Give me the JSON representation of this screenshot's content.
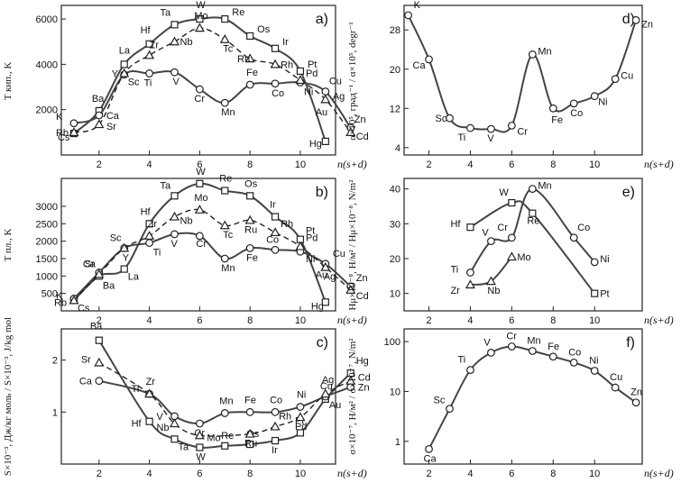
{
  "chart_data": [
    {
      "id": "a",
      "type": "line",
      "panel_label": "a)",
      "ylabel": "T кип., K",
      "xlabel": "n(s+d)",
      "xlim": [
        0.5,
        11.4
      ],
      "ylim": [
        0,
        6600
      ],
      "xticks": [
        2,
        4,
        6,
        8,
        10
      ],
      "yticks": [
        2000,
        4000,
        6000
      ],
      "series": [
        {
          "style": "solid",
          "marker": "square",
          "points": [
            {
              "x": 1,
              "y": 950,
              "label": "Cs"
            },
            {
              "x": 2,
              "y": 1950,
              "label": "Ba"
            },
            {
              "x": 3,
              "y": 4000,
              "label": "La"
            },
            {
              "x": 4,
              "y": 4900,
              "label": "Hf"
            },
            {
              "x": 5,
              "y": 5750,
              "label": "Ta"
            },
            {
              "x": 6,
              "y": 6000,
              "label": "W"
            },
            {
              "x": 7,
              "y": 6000,
              "label": "Re"
            },
            {
              "x": 8,
              "y": 5250,
              "label": "Os"
            },
            {
              "x": 9,
              "y": 4700,
              "label": "Ir"
            },
            {
              "x": 10,
              "y": 3700,
              "label": "Pt"
            },
            {
              "x": 11,
              "y": 600,
              "label": "Hg"
            }
          ]
        },
        {
          "style": "solid",
          "marker": "circle",
          "points": [
            {
              "x": 1,
              "y": 1400,
              "label": "K"
            },
            {
              "x": 2,
              "y": 1750,
              "label": "Ca"
            },
            {
              "x": 3,
              "y": 3550,
              "label": "Sc"
            },
            {
              "x": 4,
              "y": 3600,
              "label": "Ti"
            },
            {
              "x": 5,
              "y": 3650,
              "label": "V"
            },
            {
              "x": 6,
              "y": 2900,
              "label": "Cr"
            },
            {
              "x": 7,
              "y": 2300,
              "label": "Mn"
            },
            {
              "x": 8,
              "y": 3100,
              "label": "Fe"
            },
            {
              "x": 9,
              "y": 3150,
              "label": "Co"
            },
            {
              "x": 10,
              "y": 3200,
              "label": "Ni"
            },
            {
              "x": 11,
              "y": 2800,
              "label": "Cu"
            },
            {
              "x": 12,
              "y": 1200,
              "label": "Zn"
            }
          ]
        },
        {
          "style": "dashed",
          "marker": "triangle",
          "points": [
            {
              "x": 1,
              "y": 1000,
              "label": "Rb"
            },
            {
              "x": 2,
              "y": 1350,
              "label": "Sr"
            },
            {
              "x": 3,
              "y": 3600,
              "label": "Y"
            },
            {
              "x": 4,
              "y": 4400,
              "label": "Zr"
            },
            {
              "x": 5,
              "y": 5000,
              "label": "Nb"
            },
            {
              "x": 6,
              "y": 5600,
              "label": "Mo"
            },
            {
              "x": 7,
              "y": 5100,
              "label": "Tc"
            },
            {
              "x": 8,
              "y": 4250,
              "label": "Ru"
            },
            {
              "x": 9,
              "y": 4000,
              "label": "Rh"
            },
            {
              "x": 10,
              "y": 3300,
              "label": "Pd"
            },
            {
              "x": 11,
              "y": 2450,
              "label": "Ag"
            },
            {
              "x": 12,
              "y": 1000,
              "label": "Cd"
            }
          ]
        }
      ],
      "extra_labels": [
        {
          "x": 10.6,
          "y": 1900,
          "label": "Au"
        }
      ]
    },
    {
      "id": "b",
      "type": "line",
      "panel_label": "b)",
      "ylabel": "T пл., K",
      "xlabel": "n(s+d)",
      "xlim": [
        0.5,
        11.4
      ],
      "ylim": [
        0,
        3800
      ],
      "xticks": [
        2,
        4,
        6,
        8,
        10
      ],
      "yticks": [
        500,
        1000,
        1500,
        2000,
        2500,
        3000
      ],
      "series": [
        {
          "style": "solid",
          "marker": "square",
          "points": [
            {
              "x": 1,
              "y": 300,
              "label": "Cs"
            },
            {
              "x": 2,
              "y": 1000,
              "label": "Ba"
            },
            {
              "x": 3,
              "y": 1200,
              "label": "La"
            },
            {
              "x": 4,
              "y": 2500,
              "label": "Hf"
            },
            {
              "x": 5,
              "y": 3300,
              "label": "Ta"
            },
            {
              "x": 6,
              "y": 3650,
              "label": "W"
            },
            {
              "x": 7,
              "y": 3450,
              "label": "Re"
            },
            {
              "x": 8,
              "y": 3300,
              "label": "Os"
            },
            {
              "x": 9,
              "y": 2700,
              "label": "Ir"
            },
            {
              "x": 10,
              "y": 2050,
              "label": "Pt"
            },
            {
              "x": 11,
              "y": 250,
              "label": "Hg"
            }
          ]
        },
        {
          "style": "solid",
          "marker": "circle",
          "points": [
            {
              "x": 1,
              "y": 350,
              "label": "K"
            },
            {
              "x": 2,
              "y": 1100,
              "label": "Ca"
            },
            {
              "x": 3,
              "y": 1800,
              "label": "Sc"
            },
            {
              "x": 4,
              "y": 1950,
              "label": "Ti"
            },
            {
              "x": 5,
              "y": 2200,
              "label": "V"
            },
            {
              "x": 6,
              "y": 2150,
              "label": "Cr"
            },
            {
              "x": 7,
              "y": 1500,
              "label": "Mn"
            },
            {
              "x": 8,
              "y": 1800,
              "label": "Fe"
            },
            {
              "x": 9,
              "y": 1750,
              "label": "Co"
            },
            {
              "x": 10,
              "y": 1700,
              "label": "Ni"
            },
            {
              "x": 11,
              "y": 1350,
              "label": "Cu"
            },
            {
              "x": 12,
              "y": 700,
              "label": "Zn"
            }
          ]
        },
        {
          "style": "dashed",
          "marker": "triangle",
          "points": [
            {
              "x": 1,
              "y": 300,
              "label": "Rb"
            },
            {
              "x": 2,
              "y": 1050,
              "label": "Sr"
            },
            {
              "x": 3,
              "y": 1800,
              "label": "Y"
            },
            {
              "x": 4,
              "y": 2150,
              "label": "Zr"
            },
            {
              "x": 5,
              "y": 2700,
              "label": "Nb"
            },
            {
              "x": 6,
              "y": 2900,
              "label": "Mo"
            },
            {
              "x": 7,
              "y": 2450,
              "label": "Tc"
            },
            {
              "x": 8,
              "y": 2600,
              "label": "Ru"
            },
            {
              "x": 9,
              "y": 2250,
              "label": "Rh"
            },
            {
              "x": 10,
              "y": 1850,
              "label": "Pd"
            },
            {
              "x": 11,
              "y": 1250,
              "label": "Ag"
            },
            {
              "x": 12,
              "y": 600,
              "label": "Cd"
            }
          ]
        }
      ],
      "extra_labels": [
        {
          "x": 10.6,
          "y": 1050,
          "label": "Au"
        }
      ]
    },
    {
      "id": "c",
      "type": "line",
      "panel_label": "c)",
      "ylabel": "S×10⁻³, Дж/кг моль / S×10⁻³, J/kg mol",
      "xlabel": "n(s+d)",
      "xlim": [
        0.5,
        11.4
      ],
      "ylim": [
        0,
        2.6
      ],
      "xticks": [
        2,
        4,
        6,
        8,
        10
      ],
      "yticks": [
        1,
        2
      ],
      "series": [
        {
          "style": "solid",
          "marker": "square",
          "points": [
            {
              "x": 2,
              "y": 2.38,
              "label": "Ba"
            },
            {
              "x": 4,
              "y": 0.82,
              "label": "Hf"
            },
            {
              "x": 5,
              "y": 0.48,
              "label": "Ta"
            },
            {
              "x": 6,
              "y": 0.32,
              "label": "W"
            },
            {
              "x": 7,
              "y": 0.35,
              "label": "Re"
            },
            {
              "x": 8,
              "y": 0.38,
              "label": "Os"
            },
            {
              "x": 9,
              "y": 0.45,
              "label": "Ir"
            },
            {
              "x": 10,
              "y": 0.6,
              "label": "Pt"
            },
            {
              "x": 11,
              "y": 1.25,
              "label": "Au"
            },
            {
              "x": 12,
              "y": 1.75,
              "label": "Hg"
            }
          ]
        },
        {
          "style": "solid",
          "marker": "circle",
          "points": [
            {
              "x": 2,
              "y": 1.6,
              "label": "Ca"
            },
            {
              "x": 4,
              "y": 1.35,
              "label": "Ti"
            },
            {
              "x": 5,
              "y": 0.92,
              "label": "V"
            },
            {
              "x": 6,
              "y": 0.78,
              "label": "Cr"
            },
            {
              "x": 7,
              "y": 0.98,
              "label": "Mn"
            },
            {
              "x": 8,
              "y": 1.0,
              "label": "Fe"
            },
            {
              "x": 9,
              "y": 1.0,
              "label": "Co"
            },
            {
              "x": 10,
              "y": 1.1,
              "label": "Ni"
            },
            {
              "x": 11,
              "y": 1.3,
              "label": "Cu"
            },
            {
              "x": 12,
              "y": 1.48,
              "label": "Zn"
            }
          ]
        },
        {
          "style": "dashed",
          "marker": "triangle",
          "points": [
            {
              "x": 2,
              "y": 1.95,
              "label": "Sr"
            },
            {
              "x": 4,
              "y": 1.35,
              "label": "Zr"
            },
            {
              "x": 5,
              "y": 0.78,
              "label": "Nb"
            },
            {
              "x": 6,
              "y": 0.55,
              "label": "Mo"
            },
            {
              "x": 8,
              "y": 0.58,
              "label": "Ru"
            },
            {
              "x": 9,
              "y": 0.72,
              "label": "Rh"
            },
            {
              "x": 10,
              "y": 0.9,
              "label": "Pd"
            },
            {
              "x": 11,
              "y": 1.35,
              "label": "Ag"
            },
            {
              "x": 12,
              "y": 1.6,
              "label": "Cd"
            }
          ]
        }
      ],
      "extra_labels": []
    },
    {
      "id": "d",
      "type": "line",
      "panel_label": "d)",
      "ylabel": "α×10⁵, град⁻¹ / α×10⁵, degr⁻¹",
      "xlabel": "n(s+d)",
      "xlim": [
        0.8,
        12.3
      ],
      "ylim": [
        2.5,
        33
      ],
      "xticks": [
        2,
        4,
        6,
        8,
        10
      ],
      "yticks": [
        4,
        12,
        20,
        28
      ],
      "series": [
        {
          "style": "solid",
          "marker": "circle",
          "points": [
            {
              "x": 1,
              "y": 31,
              "label": "K"
            },
            {
              "x": 2,
              "y": 22,
              "label": "Ca"
            },
            {
              "x": 3,
              "y": 10,
              "label": "Sc"
            },
            {
              "x": 4,
              "y": 8,
              "label": "Ti"
            },
            {
              "x": 5,
              "y": 7.8,
              "label": "V"
            },
            {
              "x": 6,
              "y": 8.5,
              "label": "Cr"
            },
            {
              "x": 7,
              "y": 23,
              "label": "Mn"
            },
            {
              "x": 8,
              "y": 12,
              "label": "Fe"
            },
            {
              "x": 9,
              "y": 13,
              "label": "Co"
            },
            {
              "x": 10,
              "y": 14.5,
              "label": "Ni"
            },
            {
              "x": 11,
              "y": 18,
              "label": "Cu"
            },
            {
              "x": 12,
              "y": 30,
              "label": "Zn"
            }
          ]
        }
      ],
      "extra_labels": []
    },
    {
      "id": "e",
      "type": "line",
      "panel_label": "e)",
      "ylabel": "Hμ×10⁻⁸, H/м² / Hμ×10⁻⁸, N/m²",
      "xlabel": "n(s+d)",
      "xlim": [
        0.8,
        12.3
      ],
      "ylim": [
        5,
        43
      ],
      "xticks": [
        2,
        4,
        6,
        8,
        10
      ],
      "yticks": [
        10,
        20,
        30,
        40
      ],
      "series": [
        {
          "style": "solid",
          "marker": "square",
          "points": [
            {
              "x": 4,
              "y": 29,
              "label": "Hf"
            },
            {
              "x": 6,
              "y": 36,
              "label": "W"
            },
            {
              "x": 7,
              "y": 33,
              "label": "Re"
            },
            {
              "x": 10,
              "y": 10,
              "label": "Pt"
            }
          ]
        },
        {
          "style": "solid",
          "marker": "circle",
          "points": [
            {
              "x": 4,
              "y": 16,
              "label": "Ti"
            },
            {
              "x": 5,
              "y": 25,
              "label": "V"
            },
            {
              "x": 6,
              "y": 26,
              "label": "Cr"
            },
            {
              "x": 7,
              "y": 40,
              "label": "Mn"
            },
            {
              "x": 9,
              "y": 26,
              "label": "Co"
            },
            {
              "x": 10,
              "y": 19,
              "label": "Ni"
            }
          ]
        },
        {
          "style": "solid",
          "marker": "triangle",
          "points": [
            {
              "x": 4,
              "y": 12.5,
              "label": "Zr"
            },
            {
              "x": 5,
              "y": 13.5,
              "label": "Nb"
            },
            {
              "x": 6,
              "y": 20.5,
              "label": "Mo"
            }
          ]
        }
      ],
      "extra_labels": []
    },
    {
      "id": "f",
      "type": "line",
      "panel_label": "f)",
      "ylabel": "σ×10⁻⁷, H/м² / σ×10⁻⁷, N/m²",
      "xlabel": "n(s+d)",
      "xlim": [
        0.8,
        12.3
      ],
      "ylim": [
        0.35,
        180
      ],
      "yscale": "log",
      "xticks": [
        2,
        4,
        6,
        8,
        10
      ],
      "yticks": [
        1,
        10,
        100
      ],
      "series": [
        {
          "style": "solid",
          "marker": "circle",
          "points": [
            {
              "x": 2,
              "y": 0.7,
              "label": "Ca"
            },
            {
              "x": 3,
              "y": 4.5,
              "label": "Sc"
            },
            {
              "x": 4,
              "y": 27,
              "label": "Ti"
            },
            {
              "x": 5,
              "y": 60,
              "label": "V"
            },
            {
              "x": 6,
              "y": 80,
              "label": "Cr"
            },
            {
              "x": 7,
              "y": 65,
              "label": "Mn"
            },
            {
              "x": 8,
              "y": 50,
              "label": "Fe"
            },
            {
              "x": 9,
              "y": 38,
              "label": "Co"
            },
            {
              "x": 10,
              "y": 26,
              "label": "Ni"
            },
            {
              "x": 11,
              "y": 12,
              "label": "Cu"
            },
            {
              "x": 12,
              "y": 6,
              "label": "Zn"
            }
          ]
        }
      ],
      "extra_labels": []
    }
  ]
}
